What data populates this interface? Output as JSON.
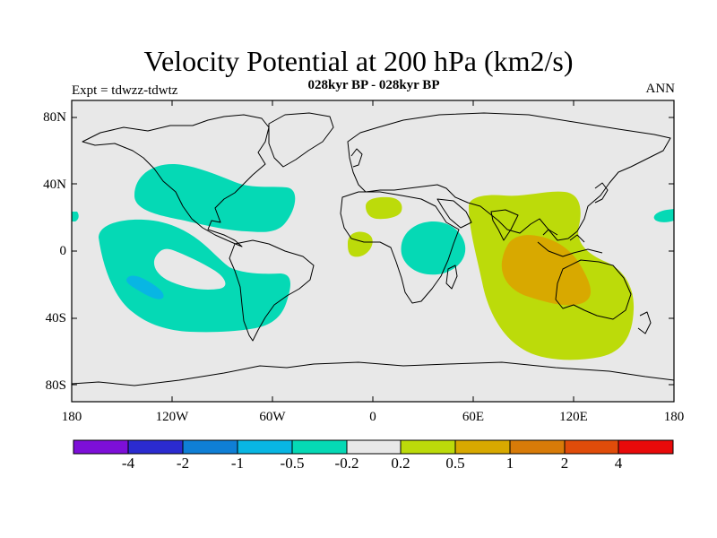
{
  "title": "Velocity Potential at 200 hPa (km2/s)",
  "subtitle": "028kyr BP - 028kyr BP",
  "expt_label": "Expt = tdwzz-tdwtz",
  "period_label": "ANN",
  "lat_ticks": [
    "80N",
    "40N",
    "0",
    "40S",
    "80S"
  ],
  "lon_ticks": [
    "180",
    "120W",
    "60W",
    "0",
    "60E",
    "120E",
    "180"
  ],
  "colorbar": {
    "colors": [
      "#7d0fd8",
      "#2b2bd0",
      "#0f7fd6",
      "#08b6e3",
      "#05d9b5",
      "#e8e8e8",
      "#bcdb0a",
      "#d8a900",
      "#d87b08",
      "#e04c0a",
      "#e80a0a"
    ],
    "labels": [
      "-4",
      "-2",
      "-1",
      "-0.5",
      "-0.2",
      "0.2",
      "0.5",
      "1",
      "2",
      "4"
    ]
  },
  "colors": {
    "map_background": "#e8e8e8",
    "negative_fill": "#05d9b5",
    "negative_core": "#08b6e3",
    "positive_fill": "#bcdb0a",
    "positive_core": "#d8a900"
  }
}
